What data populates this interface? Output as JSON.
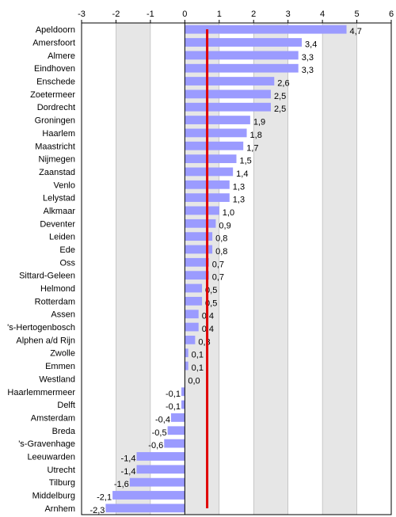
{
  "chart_data": {
    "type": "bar",
    "orientation": "horizontal",
    "xlim": [
      -3,
      6
    ],
    "x_ticks": [
      "-3",
      "-2",
      "-1",
      "0",
      "1",
      "2",
      "3",
      "4",
      "5",
      "6"
    ],
    "x_tick_values": [
      -3,
      -2,
      -1,
      0,
      1,
      2,
      3,
      4,
      5,
      6
    ],
    "grid": "vertical, alternating gray bands",
    "categories": [
      "Apeldoorn",
      "Amersfoort",
      "Almere",
      "Eindhoven",
      "Enschede",
      "Zoetermeer",
      "Dordrecht",
      "Groningen",
      "Haarlem",
      "Maastricht",
      "Nijmegen",
      "Zaanstad",
      "Venlo",
      "Lelystad",
      "Alkmaar",
      "Deventer",
      "Leiden",
      "Ede",
      "Oss",
      "Sittard-Geleen",
      "Helmond",
      "Rotterdam",
      "Assen",
      "'s-Hertogenbosch",
      "Alphen a/d Rijn",
      "Zwolle",
      "Emmen",
      "Westland",
      "Haarlemmermeer",
      "Delft",
      "Amsterdam",
      "Breda",
      "'s-Gravenhage",
      "Leeuwarden",
      "Utrecht",
      "Tilburg",
      "Middelburg",
      "Arnhem"
    ],
    "values": [
      4.7,
      3.4,
      3.3,
      3.3,
      2.6,
      2.5,
      2.5,
      1.9,
      1.8,
      1.7,
      1.5,
      1.4,
      1.3,
      1.3,
      1.0,
      0.9,
      0.8,
      0.8,
      0.7,
      0.7,
      0.5,
      0.5,
      0.4,
      0.4,
      0.3,
      0.1,
      0.1,
      0.0,
      -0.1,
      -0.1,
      -0.4,
      -0.5,
      -0.6,
      -1.4,
      -1.4,
      -1.6,
      -2.1,
      -2.3
    ],
    "value_labels": [
      "4,7",
      "3,4",
      "3,3",
      "3,3",
      "2,6",
      "2,5",
      "2,5",
      "1,9",
      "1,8",
      "1,7",
      "1,5",
      "1,4",
      "1,3",
      "1,3",
      "1,0",
      "0,9",
      "0,8",
      "0,8",
      "0,7",
      "0,7",
      "0,5",
      "0,5",
      "0,4",
      "0,4",
      "0,3",
      "0,1",
      "0,1",
      "0,0",
      "-0,1",
      "-0,1",
      "-0,4",
      "-0,5",
      "-0,6",
      "-1,4",
      "-1,4",
      "-1,6",
      "-2,1",
      "-2,3"
    ],
    "reference_line": {
      "value": 0.65
    },
    "colors": {
      "bar": "#9b9bff",
      "reference_line": "#e00000",
      "band": "#e6e6e6",
      "plot_bg": "#ffffff"
    }
  }
}
